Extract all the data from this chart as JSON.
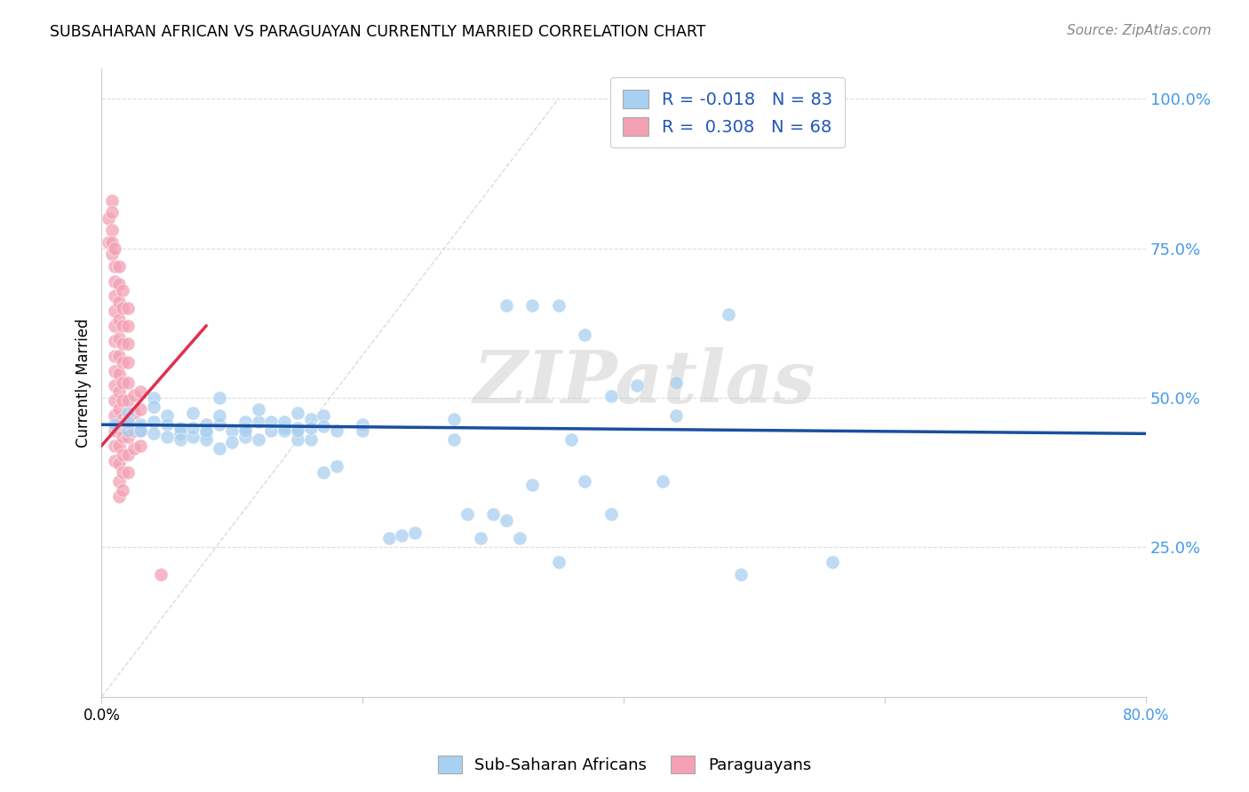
{
  "title": "SUBSAHARAN AFRICAN VS PARAGUAYAN CURRENTLY MARRIED CORRELATION CHART",
  "source": "Source: ZipAtlas.com",
  "ylabel": "Currently Married",
  "xlim": [
    0.0,
    0.8
  ],
  "ylim": [
    0.0,
    1.05
  ],
  "legend_blue_label": "Sub-Saharan Africans",
  "legend_pink_label": "Paraguayans",
  "R_blue": -0.018,
  "N_blue": 83,
  "R_pink": 0.308,
  "N_pink": 68,
  "blue_color": "#A8D0F0",
  "pink_color": "#F4A0B5",
  "blue_line_color": "#1A4FA0",
  "pink_line_color": "#E03050",
  "diagonal_color": "#CCCCCC",
  "watermark": "ZIPatlas",
  "blue_dots": [
    [
      0.01,
      0.455
    ],
    [
      0.02,
      0.445
    ],
    [
      0.02,
      0.475
    ],
    [
      0.02,
      0.46
    ],
    [
      0.03,
      0.445
    ],
    [
      0.03,
      0.455
    ],
    [
      0.03,
      0.445
    ],
    [
      0.04,
      0.46
    ],
    [
      0.04,
      0.44
    ],
    [
      0.04,
      0.5
    ],
    [
      0.04,
      0.485
    ],
    [
      0.05,
      0.47
    ],
    [
      0.05,
      0.455
    ],
    [
      0.05,
      0.435
    ],
    [
      0.06,
      0.445
    ],
    [
      0.06,
      0.44
    ],
    [
      0.06,
      0.45
    ],
    [
      0.06,
      0.43
    ],
    [
      0.07,
      0.435
    ],
    [
      0.07,
      0.45
    ],
    [
      0.07,
      0.475
    ],
    [
      0.08,
      0.44
    ],
    [
      0.08,
      0.43
    ],
    [
      0.08,
      0.455
    ],
    [
      0.08,
      0.445
    ],
    [
      0.09,
      0.455
    ],
    [
      0.09,
      0.415
    ],
    [
      0.09,
      0.5
    ],
    [
      0.09,
      0.47
    ],
    [
      0.1,
      0.445
    ],
    [
      0.1,
      0.425
    ],
    [
      0.11,
      0.46
    ],
    [
      0.11,
      0.435
    ],
    [
      0.11,
      0.45
    ],
    [
      0.11,
      0.445
    ],
    [
      0.12,
      0.46
    ],
    [
      0.12,
      0.43
    ],
    [
      0.12,
      0.48
    ],
    [
      0.13,
      0.445
    ],
    [
      0.13,
      0.46
    ],
    [
      0.14,
      0.45
    ],
    [
      0.14,
      0.46
    ],
    [
      0.14,
      0.445
    ],
    [
      0.15,
      0.475
    ],
    [
      0.15,
      0.43
    ],
    [
      0.15,
      0.45
    ],
    [
      0.15,
      0.445
    ],
    [
      0.16,
      0.465
    ],
    [
      0.16,
      0.43
    ],
    [
      0.16,
      0.45
    ],
    [
      0.17,
      0.47
    ],
    [
      0.17,
      0.375
    ],
    [
      0.17,
      0.453
    ],
    [
      0.18,
      0.445
    ],
    [
      0.18,
      0.385
    ],
    [
      0.2,
      0.455
    ],
    [
      0.2,
      0.445
    ],
    [
      0.22,
      0.265
    ],
    [
      0.23,
      0.27
    ],
    [
      0.24,
      0.275
    ],
    [
      0.27,
      0.465
    ],
    [
      0.27,
      0.43
    ],
    [
      0.28,
      0.305
    ],
    [
      0.29,
      0.265
    ],
    [
      0.3,
      0.305
    ],
    [
      0.31,
      0.655
    ],
    [
      0.31,
      0.295
    ],
    [
      0.32,
      0.265
    ],
    [
      0.33,
      0.655
    ],
    [
      0.33,
      0.355
    ],
    [
      0.35,
      0.655
    ],
    [
      0.35,
      0.225
    ],
    [
      0.36,
      0.43
    ],
    [
      0.37,
      0.605
    ],
    [
      0.37,
      0.36
    ],
    [
      0.39,
      0.503
    ],
    [
      0.39,
      0.305
    ],
    [
      0.41,
      0.52
    ],
    [
      0.43,
      0.36
    ],
    [
      0.44,
      0.525
    ],
    [
      0.44,
      0.47
    ],
    [
      0.48,
      0.64
    ],
    [
      0.49,
      0.205
    ],
    [
      0.56,
      0.225
    ]
  ],
  "pink_dots": [
    [
      0.005,
      0.8
    ],
    [
      0.005,
      0.76
    ],
    [
      0.008,
      0.83
    ],
    [
      0.008,
      0.81
    ],
    [
      0.008,
      0.78
    ],
    [
      0.008,
      0.76
    ],
    [
      0.008,
      0.74
    ],
    [
      0.01,
      0.75
    ],
    [
      0.01,
      0.72
    ],
    [
      0.01,
      0.695
    ],
    [
      0.01,
      0.67
    ],
    [
      0.01,
      0.645
    ],
    [
      0.01,
      0.62
    ],
    [
      0.01,
      0.595
    ],
    [
      0.01,
      0.57
    ],
    [
      0.01,
      0.545
    ],
    [
      0.01,
      0.52
    ],
    [
      0.01,
      0.495
    ],
    [
      0.01,
      0.47
    ],
    [
      0.01,
      0.445
    ],
    [
      0.01,
      0.42
    ],
    [
      0.01,
      0.395
    ],
    [
      0.013,
      0.72
    ],
    [
      0.013,
      0.69
    ],
    [
      0.013,
      0.66
    ],
    [
      0.013,
      0.63
    ],
    [
      0.013,
      0.6
    ],
    [
      0.013,
      0.57
    ],
    [
      0.013,
      0.54
    ],
    [
      0.013,
      0.51
    ],
    [
      0.013,
      0.48
    ],
    [
      0.013,
      0.45
    ],
    [
      0.013,
      0.42
    ],
    [
      0.013,
      0.39
    ],
    [
      0.013,
      0.36
    ],
    [
      0.013,
      0.335
    ],
    [
      0.016,
      0.68
    ],
    [
      0.016,
      0.65
    ],
    [
      0.016,
      0.62
    ],
    [
      0.016,
      0.59
    ],
    [
      0.016,
      0.56
    ],
    [
      0.016,
      0.525
    ],
    [
      0.016,
      0.495
    ],
    [
      0.016,
      0.465
    ],
    [
      0.016,
      0.435
    ],
    [
      0.016,
      0.405
    ],
    [
      0.016,
      0.375
    ],
    [
      0.016,
      0.345
    ],
    [
      0.02,
      0.65
    ],
    [
      0.02,
      0.62
    ],
    [
      0.02,
      0.59
    ],
    [
      0.02,
      0.56
    ],
    [
      0.02,
      0.525
    ],
    [
      0.02,
      0.495
    ],
    [
      0.02,
      0.465
    ],
    [
      0.02,
      0.435
    ],
    [
      0.02,
      0.405
    ],
    [
      0.02,
      0.375
    ],
    [
      0.025,
      0.505
    ],
    [
      0.025,
      0.475
    ],
    [
      0.025,
      0.445
    ],
    [
      0.025,
      0.415
    ],
    [
      0.03,
      0.51
    ],
    [
      0.03,
      0.48
    ],
    [
      0.03,
      0.45
    ],
    [
      0.03,
      0.42
    ],
    [
      0.045,
      0.205
    ]
  ],
  "pink_line_x": [
    0.0,
    0.08
  ],
  "pink_line_y": [
    0.42,
    0.62
  ],
  "blue_line_x": [
    0.0,
    0.8
  ],
  "blue_line_y": [
    0.455,
    0.44
  ]
}
